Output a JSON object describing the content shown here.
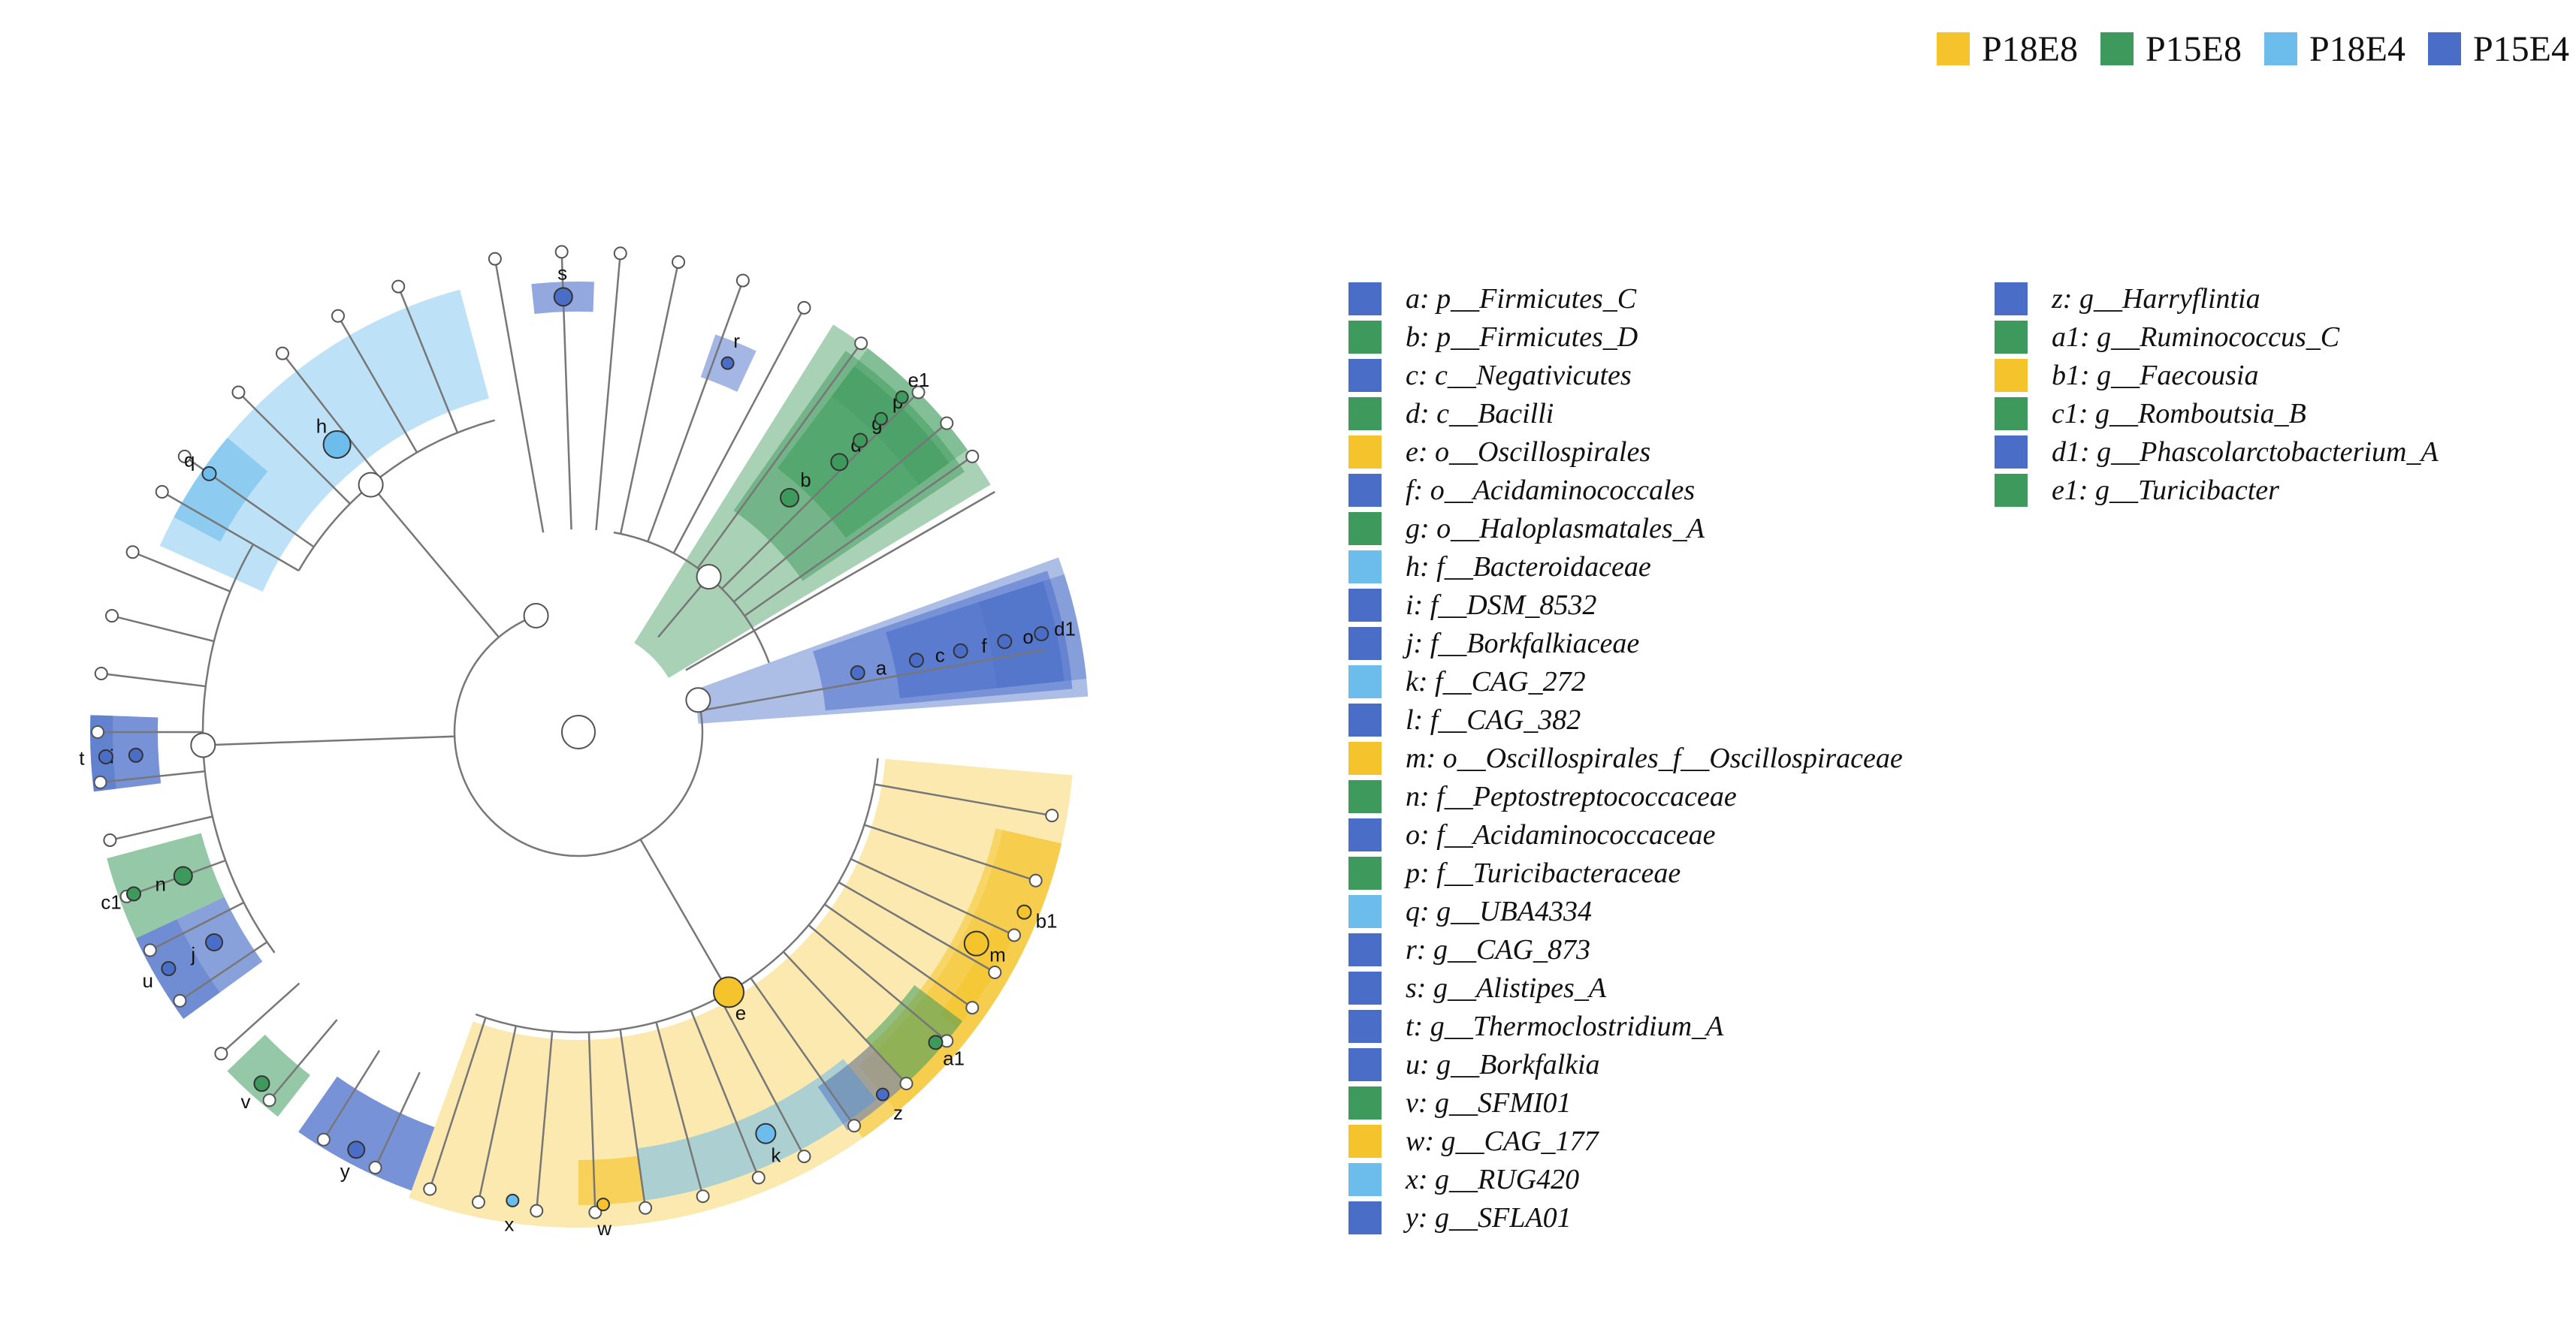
{
  "colors": {
    "P18E8": "#f5c42c",
    "P15E8": "#3d9a5c",
    "P18E4": "#6cbcec",
    "P15E4": "#4a6ec8",
    "branch": "#777777",
    "node_fill": "#ffffff",
    "node_stroke": "#555555"
  },
  "groups": [
    {
      "label": "P18E8",
      "color": "#f5c42c"
    },
    {
      "label": "P15E8",
      "color": "#3d9a5c"
    },
    {
      "label": "P18E4",
      "color": "#6cbcec"
    },
    {
      "label": "P15E4",
      "color": "#4a6ec8"
    }
  ],
  "clades": [
    {
      "key": "a",
      "text": "a: p__Firmicutes_C",
      "group": "P15E4"
    },
    {
      "key": "b",
      "text": "b: p__Firmicutes_D",
      "group": "P15E8"
    },
    {
      "key": "c",
      "text": "c: c__Negativicutes",
      "group": "P15E4"
    },
    {
      "key": "d",
      "text": "d: c__Bacilli",
      "group": "P15E8"
    },
    {
      "key": "e",
      "text": "e: o__Oscillospirales",
      "group": "P18E8"
    },
    {
      "key": "f",
      "text": "f: o__Acidaminococcales",
      "group": "P15E4"
    },
    {
      "key": "g",
      "text": "g: o__Haloplasmatales_A",
      "group": "P15E8"
    },
    {
      "key": "h",
      "text": "h: f__Bacteroidaceae",
      "group": "P18E4"
    },
    {
      "key": "i",
      "text": "i: f__DSM_8532",
      "group": "P15E4"
    },
    {
      "key": "j",
      "text": "j: f__Borkfalkiaceae",
      "group": "P15E4"
    },
    {
      "key": "k",
      "text": "k: f__CAG_272",
      "group": "P18E4"
    },
    {
      "key": "l",
      "text": "l: f__CAG_382",
      "group": "P15E4"
    },
    {
      "key": "m",
      "text": "m: o__Oscillospirales_f__Oscillospiraceae",
      "group": "P18E8"
    },
    {
      "key": "n",
      "text": "n: f__Peptostreptococcaceae",
      "group": "P15E8"
    },
    {
      "key": "o",
      "text": "o: f__Acidaminococcaceae",
      "group": "P15E4"
    },
    {
      "key": "p",
      "text": "p: f__Turicibacteraceae",
      "group": "P15E8"
    },
    {
      "key": "q",
      "text": "q: g__UBA4334",
      "group": "P18E4"
    },
    {
      "key": "r",
      "text": "r: g__CAG_873",
      "group": "P15E4"
    },
    {
      "key": "s",
      "text": "s: g__Alistipes_A",
      "group": "P15E4"
    },
    {
      "key": "t",
      "text": "t: g__Thermoclostridium_A",
      "group": "P15E4"
    },
    {
      "key": "u",
      "text": "u: g__Borkfalkia",
      "group": "P15E4"
    },
    {
      "key": "v",
      "text": "v: g__SFMI01",
      "group": "P15E8"
    },
    {
      "key": "w",
      "text": "w: g__CAG_177",
      "group": "P18E8"
    },
    {
      "key": "x",
      "text": "x: g__RUG420",
      "group": "P18E4"
    },
    {
      "key": "y",
      "text": "y: g__SFLA01",
      "group": "P15E4"
    },
    {
      "key": "z",
      "text": "z: g__Harryflintia",
      "group": "P15E4"
    },
    {
      "key": "a1",
      "text": "a1: g__Ruminococcus_C",
      "group": "P15E8"
    },
    {
      "key": "b1",
      "text": "b1: g__Faecousia",
      "group": "P18E8"
    },
    {
      "key": "c1",
      "text": "c1: g__Romboutsia_B",
      "group": "P15E8"
    },
    {
      "key": "d1",
      "text": "d1: g__Phascolarctobacterium_A",
      "group": "P15E4"
    },
    {
      "key": "e1",
      "text": "e1: g__Turicibacter",
      "group": "P15E8"
    }
  ]
}
